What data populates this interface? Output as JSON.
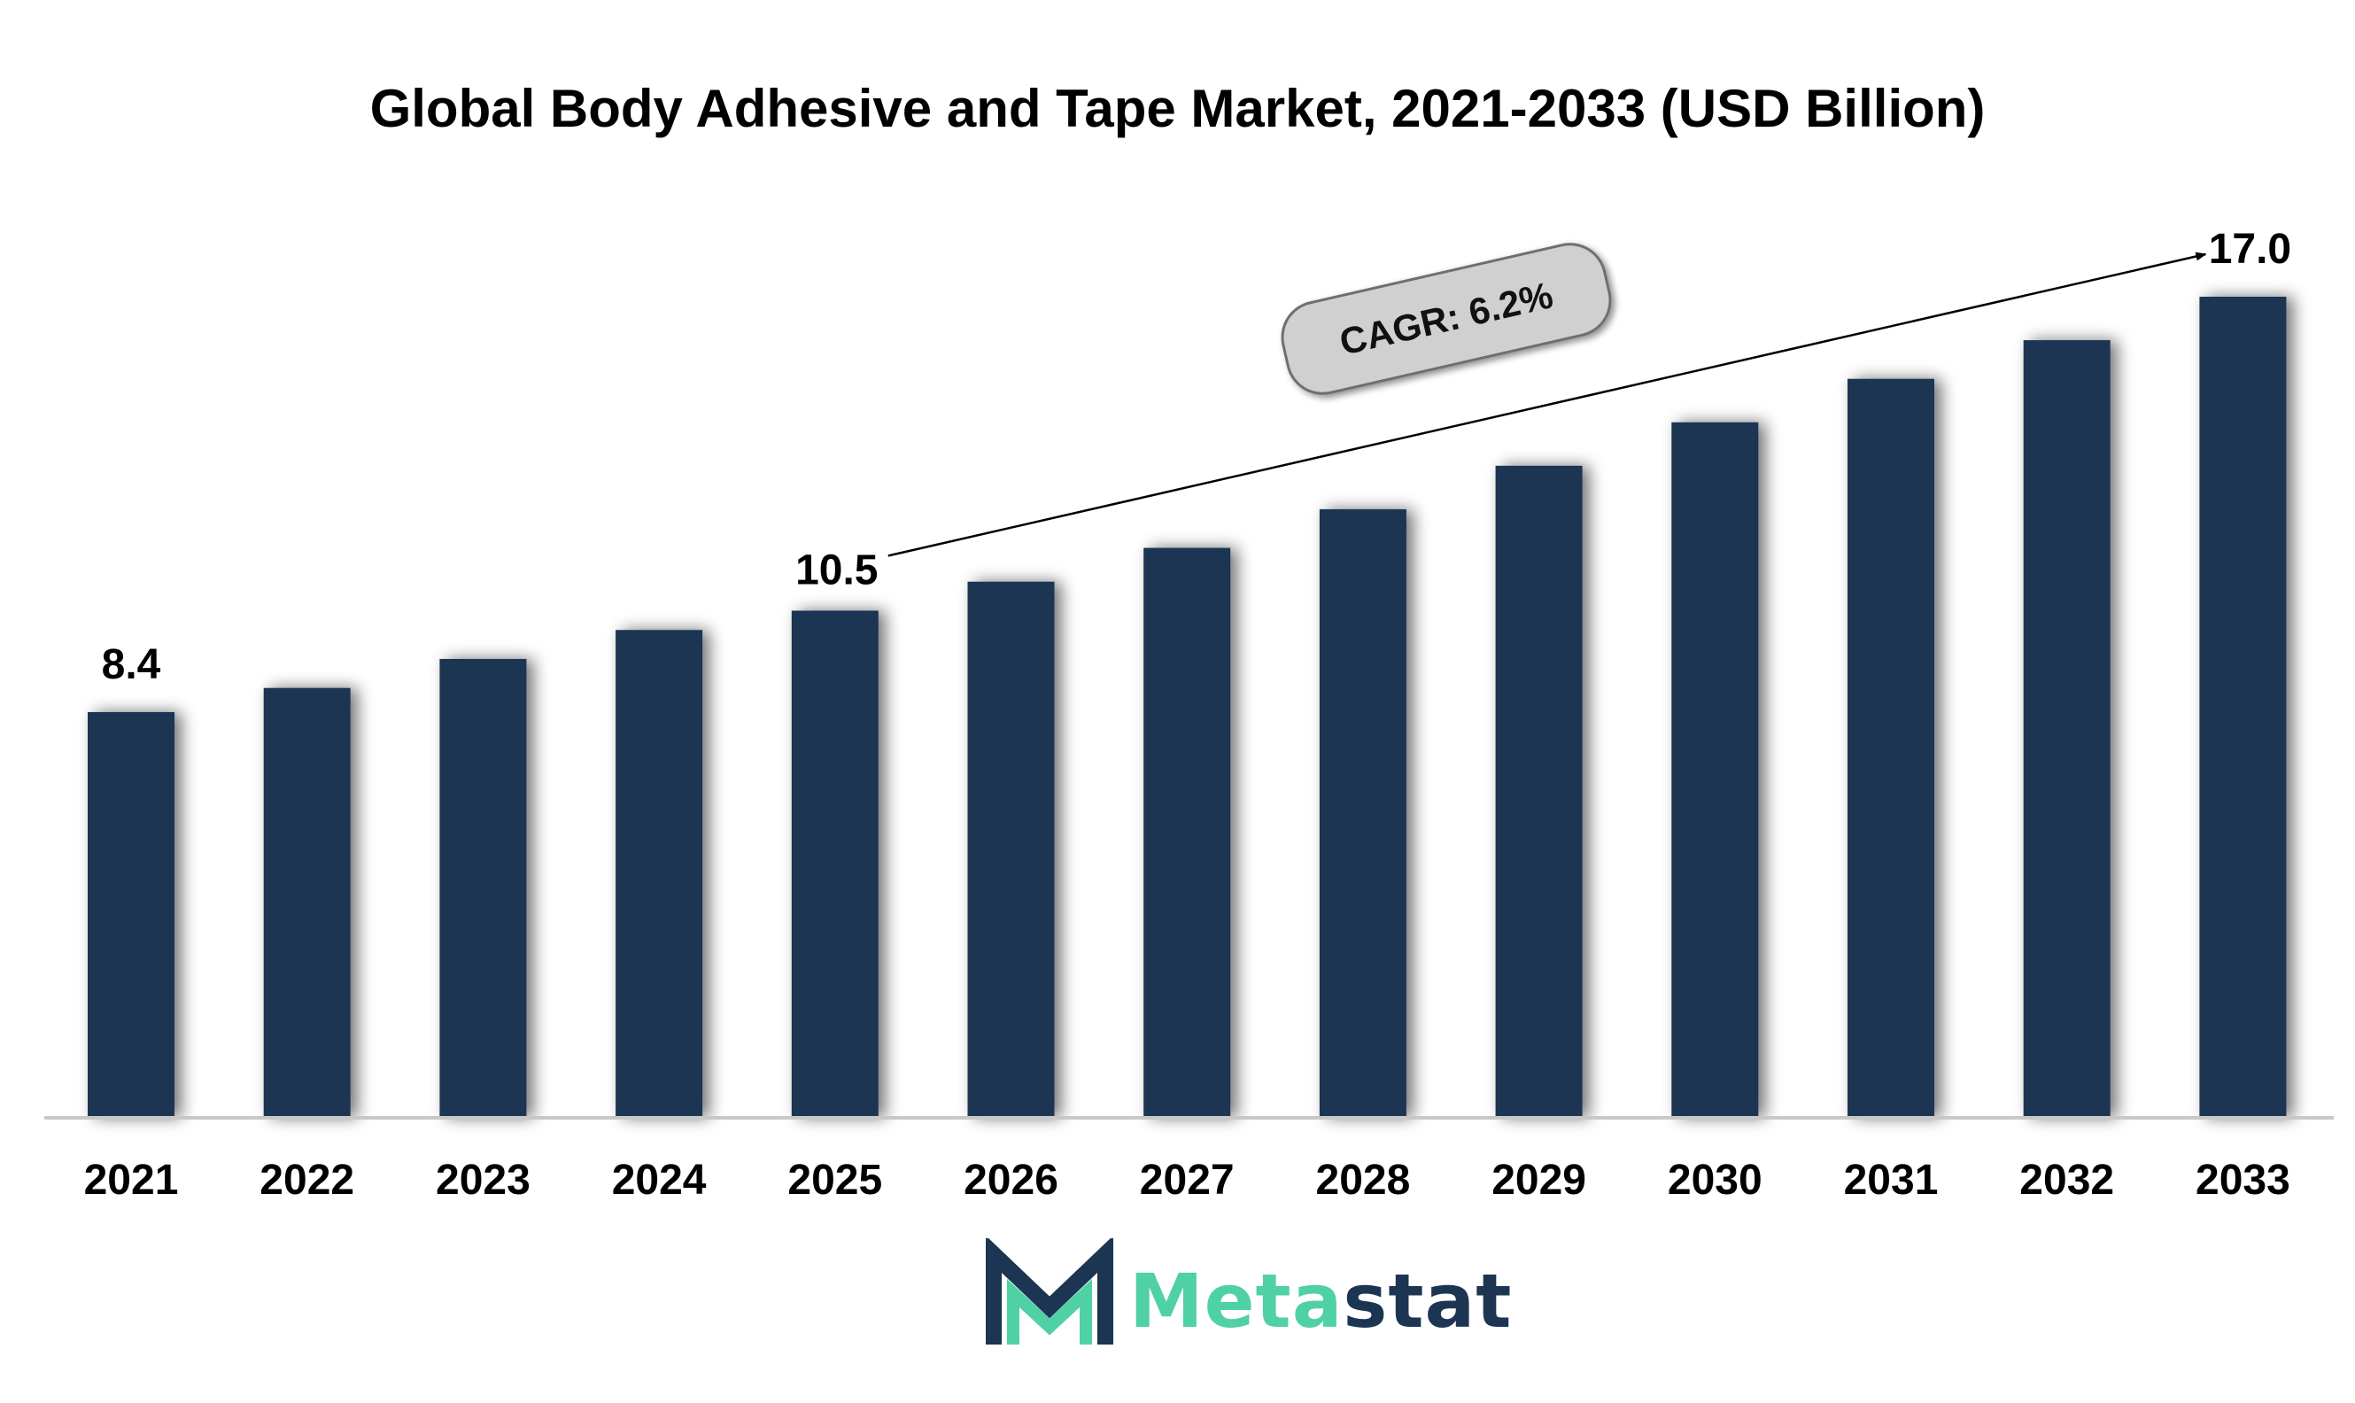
{
  "chart_data": {
    "type": "bar",
    "title": "Global Body Adhesive and Tape Market, 2021-2033 (USD Billion)",
    "categories": [
      "2021",
      "2022",
      "2023",
      "2024",
      "2025",
      "2026",
      "2027",
      "2028",
      "2029",
      "2030",
      "2031",
      "2032",
      "2033"
    ],
    "values": [
      8.4,
      8.9,
      9.5,
      10.1,
      10.5,
      11.1,
      11.8,
      12.6,
      13.5,
      14.4,
      15.3,
      16.1,
      17.0
    ],
    "data_labels": [
      {
        "index": 0,
        "text": "8.4"
      },
      {
        "index": 4,
        "text": "10.5"
      },
      {
        "index": 12,
        "text": "17.0"
      }
    ],
    "annotation": {
      "text": "CAGR: 6.2%",
      "from_index": 4,
      "to_index": 12
    },
    "xlabel": "",
    "ylabel": "",
    "ylim": [
      0,
      17.0
    ],
    "grid": false,
    "bar_color": "#1b3553"
  },
  "logo": {
    "part1": "Meta",
    "part2": "stat",
    "color_accent": "#4fd1a5",
    "color_dark": "#1b3553"
  }
}
